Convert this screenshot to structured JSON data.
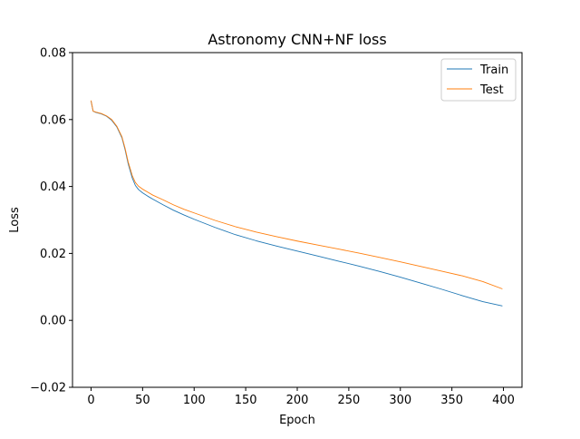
{
  "chart_data": {
    "type": "line",
    "title": "Astronomy CNN+NF loss",
    "xlabel": "Epoch",
    "ylabel": "Loss",
    "xlim": [
      -18,
      418
    ],
    "ylim": [
      -0.02,
      0.08
    ],
    "xticks": [
      0,
      50,
      100,
      150,
      200,
      250,
      300,
      350,
      400
    ],
    "xtick_labels": [
      "0",
      "50",
      "100",
      "150",
      "200",
      "250",
      "300",
      "350",
      "400"
    ],
    "yticks": [
      -0.02,
      0.0,
      0.02,
      0.04,
      0.06,
      0.08
    ],
    "ytick_labels": [
      "−0.02",
      "0.00",
      "0.02",
      "0.04",
      "0.06",
      "0.08"
    ],
    "grid": false,
    "legend_position": "top-right",
    "series": [
      {
        "name": "Train",
        "color": "#1f77b4",
        "x": [
          0,
          2,
          5,
          10,
          15,
          20,
          25,
          30,
          33,
          36,
          40,
          43,
          46,
          50,
          55,
          60,
          70,
          80,
          90,
          100,
          120,
          140,
          160,
          180,
          200,
          220,
          240,
          260,
          280,
          300,
          320,
          340,
          360,
          380,
          399
        ],
        "y": [
          0.0655,
          0.0625,
          0.0621,
          0.0617,
          0.061,
          0.0598,
          0.0578,
          0.0545,
          0.051,
          0.0468,
          0.0425,
          0.0403,
          0.0391,
          0.0381,
          0.0371,
          0.0362,
          0.0345,
          0.0329,
          0.0315,
          0.0302,
          0.0278,
          0.0256,
          0.0238,
          0.0222,
          0.0207,
          0.0192,
          0.0177,
          0.0162,
          0.0146,
          0.0129,
          0.0111,
          0.0093,
          0.0074,
          0.0056,
          0.0043
        ]
      },
      {
        "name": "Test",
        "color": "#ff7f0e",
        "x": [
          0,
          2,
          5,
          10,
          15,
          20,
          25,
          30,
          33,
          36,
          40,
          43,
          46,
          50,
          55,
          60,
          70,
          80,
          90,
          100,
          120,
          140,
          160,
          180,
          200,
          220,
          240,
          260,
          280,
          300,
          320,
          340,
          360,
          380,
          399
        ],
        "y": [
          0.0657,
          0.0625,
          0.0622,
          0.0618,
          0.0611,
          0.06,
          0.058,
          0.0548,
          0.0514,
          0.0473,
          0.0432,
          0.0412,
          0.0401,
          0.0392,
          0.0383,
          0.0374,
          0.036,
          0.0345,
          0.0332,
          0.0321,
          0.0299,
          0.028,
          0.0264,
          0.025,
          0.0237,
          0.0225,
          0.0213,
          0.0201,
          0.0188,
          0.0175,
          0.0161,
          0.0147,
          0.0133,
          0.0116,
          0.0094
        ]
      }
    ]
  }
}
